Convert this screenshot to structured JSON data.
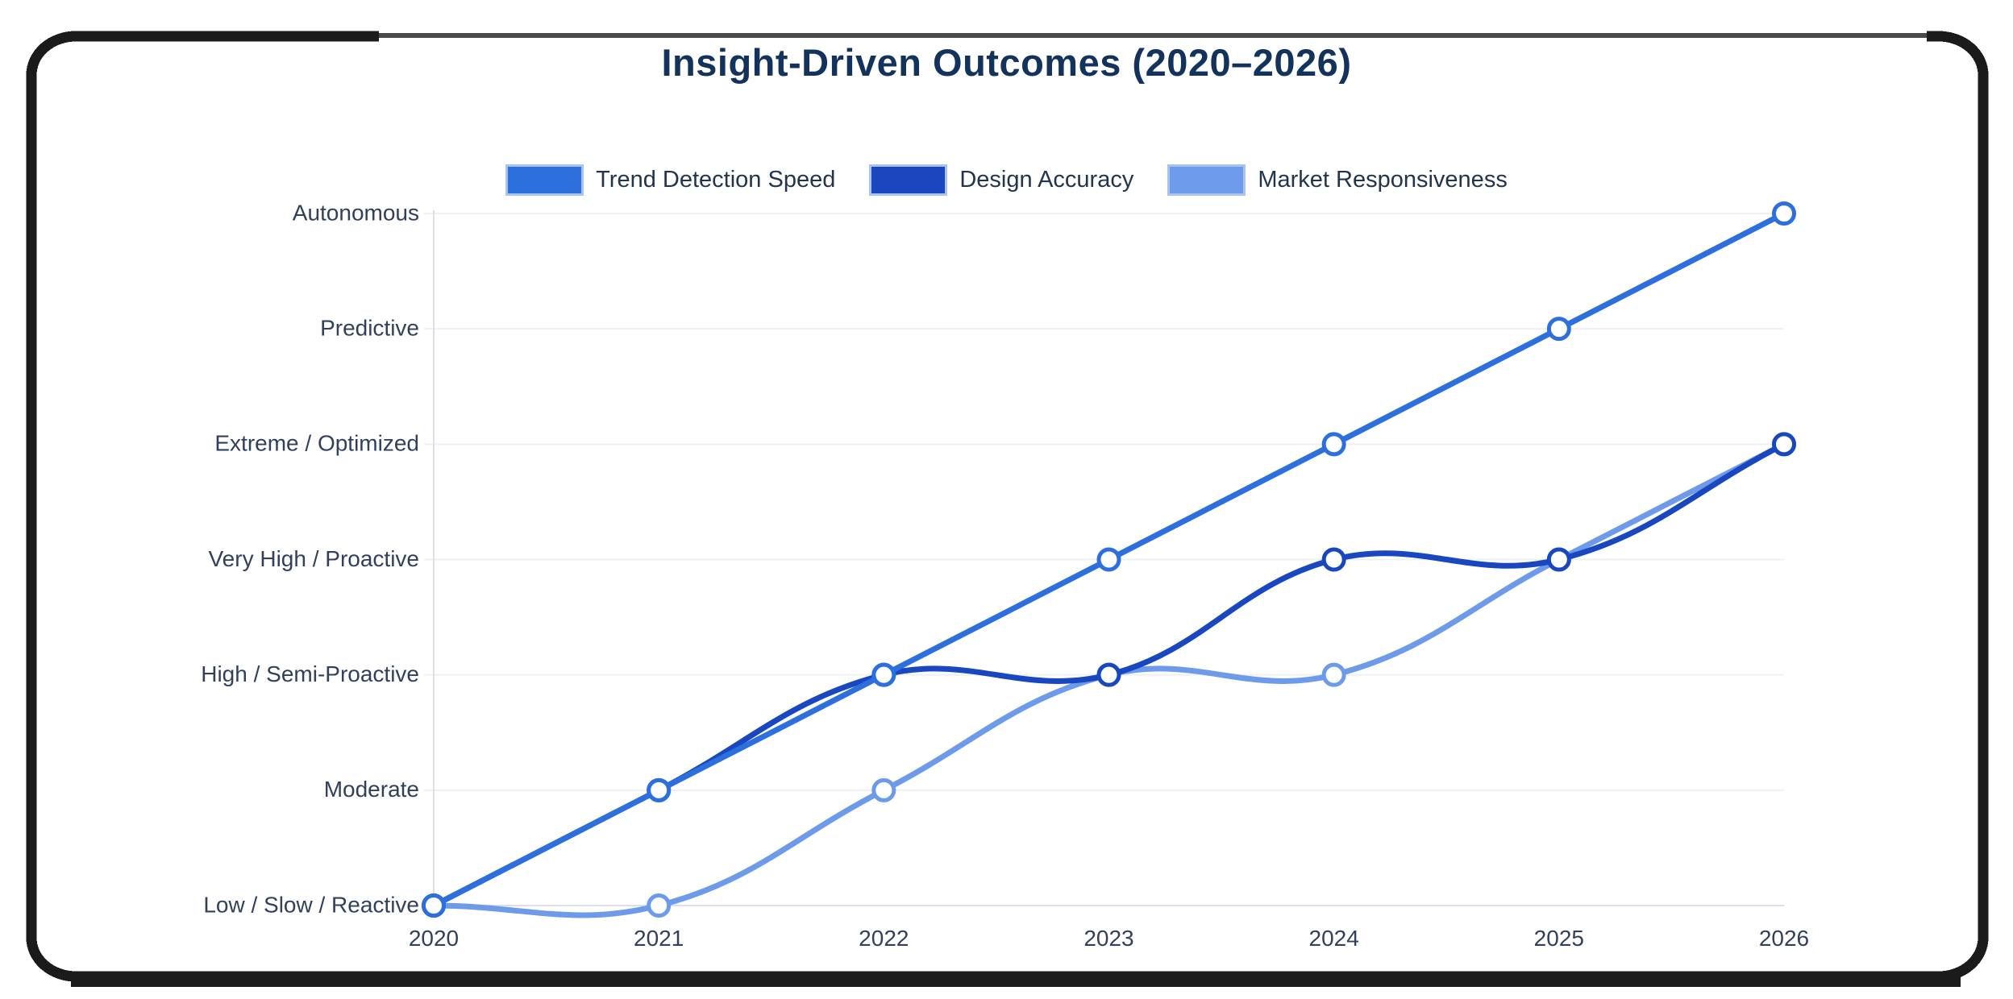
{
  "chart": {
    "title": "Insight-Driven Outcomes (2020–2026)",
    "title_color": "#14335c"
  },
  "colors": {
    "background": "#ffffff",
    "frame": "#1b1b1b",
    "frame_top_accent": "#4a4a4a",
    "gridline": "#edf0f6",
    "axis_line": "#dbdfe9",
    "tick_label": "#31415c",
    "legend_label": "#22354f",
    "legend_swatch_border": "#a9c3f1",
    "point_fill": "#ffffff"
  },
  "chart_data": {
    "type": "line",
    "title": "Insight-Driven Outcomes (2020–2026)",
    "x_labels": [
      "2020",
      "2021",
      "2022",
      "2023",
      "2024",
      "2025",
      "2026"
    ],
    "y_axis": {
      "levels_bottom_to_top": [
        "Low / Slow / Reactive",
        "Moderate",
        "High / Semi-Proactive",
        "Very High / Proactive",
        "Extreme / Optimized",
        "Predictive",
        "Autonomous"
      ],
      "range": [
        0,
        6
      ]
    },
    "series": [
      {
        "name": "Trend Detection Speed",
        "color": "#2d6fdd",
        "values": [
          0,
          1,
          2,
          3,
          4,
          5,
          6
        ],
        "values_as_levels": [
          "Low / Slow / Reactive",
          "Moderate",
          "High / Semi-Proactive",
          "Very High / Proactive",
          "Extreme / Optimized",
          "Predictive",
          "Autonomous"
        ]
      },
      {
        "name": "Design Accuracy",
        "color": "#1847bf",
        "values": [
          0,
          1,
          2,
          2,
          3,
          3,
          4
        ],
        "values_as_levels": [
          "Low / Slow / Reactive",
          "Moderate",
          "High / Semi-Proactive",
          "High / Semi-Proactive",
          "Very High / Proactive",
          "Very High / Proactive",
          "Extreme / Optimized"
        ]
      },
      {
        "name": "Market Responsiveness",
        "color": "#6d9bea",
        "values": [
          0,
          0,
          1,
          2,
          2,
          3,
          4
        ],
        "values_as_levels": [
          "Low / Slow / Reactive",
          "Low / Slow / Reactive",
          "Moderate",
          "High / Semi-Proactive",
          "High / Semi-Proactive",
          "Very High / Proactive",
          "Extreme / Optimized"
        ]
      }
    ],
    "legend_position": "top",
    "grid": true,
    "line_tension": 0.4,
    "point_style": "circle-white-fill",
    "xlabel": "",
    "ylabel": ""
  }
}
